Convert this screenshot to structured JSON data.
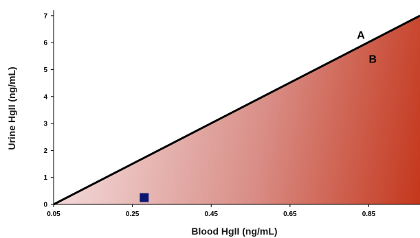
{
  "chart_data": {
    "type": "area",
    "xlabel": "Blood HgII (ng/mL)",
    "ylabel": "Urine HgII (ng/mL)",
    "xlim": [
      0.05,
      0.98
    ],
    "ylim": [
      0,
      7.2
    ],
    "x_ticks": [
      "0.05",
      "0.25",
      "0.45",
      "0.65",
      "0.85"
    ],
    "y_ticks": [
      "0",
      "1",
      "2",
      "3",
      "4",
      "5",
      "6",
      "7"
    ],
    "grid": false,
    "series": [
      {
        "type": "line",
        "x": [
          0.05,
          0.98
        ],
        "y": [
          0,
          7.0
        ]
      },
      {
        "type": "scatter",
        "x": [
          0.28
        ],
        "y": [
          0.25
        ]
      }
    ],
    "annotations": [
      {
        "text": "A",
        "x": 0.83,
        "y": 6.15
      },
      {
        "text": "B",
        "x": 0.86,
        "y": 5.25
      }
    ],
    "colors": {
      "line": "#000000",
      "marker": "#0b1670",
      "shade_light": "#f4dede",
      "shade_mid": "#d98e87",
      "shade_dark": "#c4371c",
      "axis": "#000000"
    }
  }
}
